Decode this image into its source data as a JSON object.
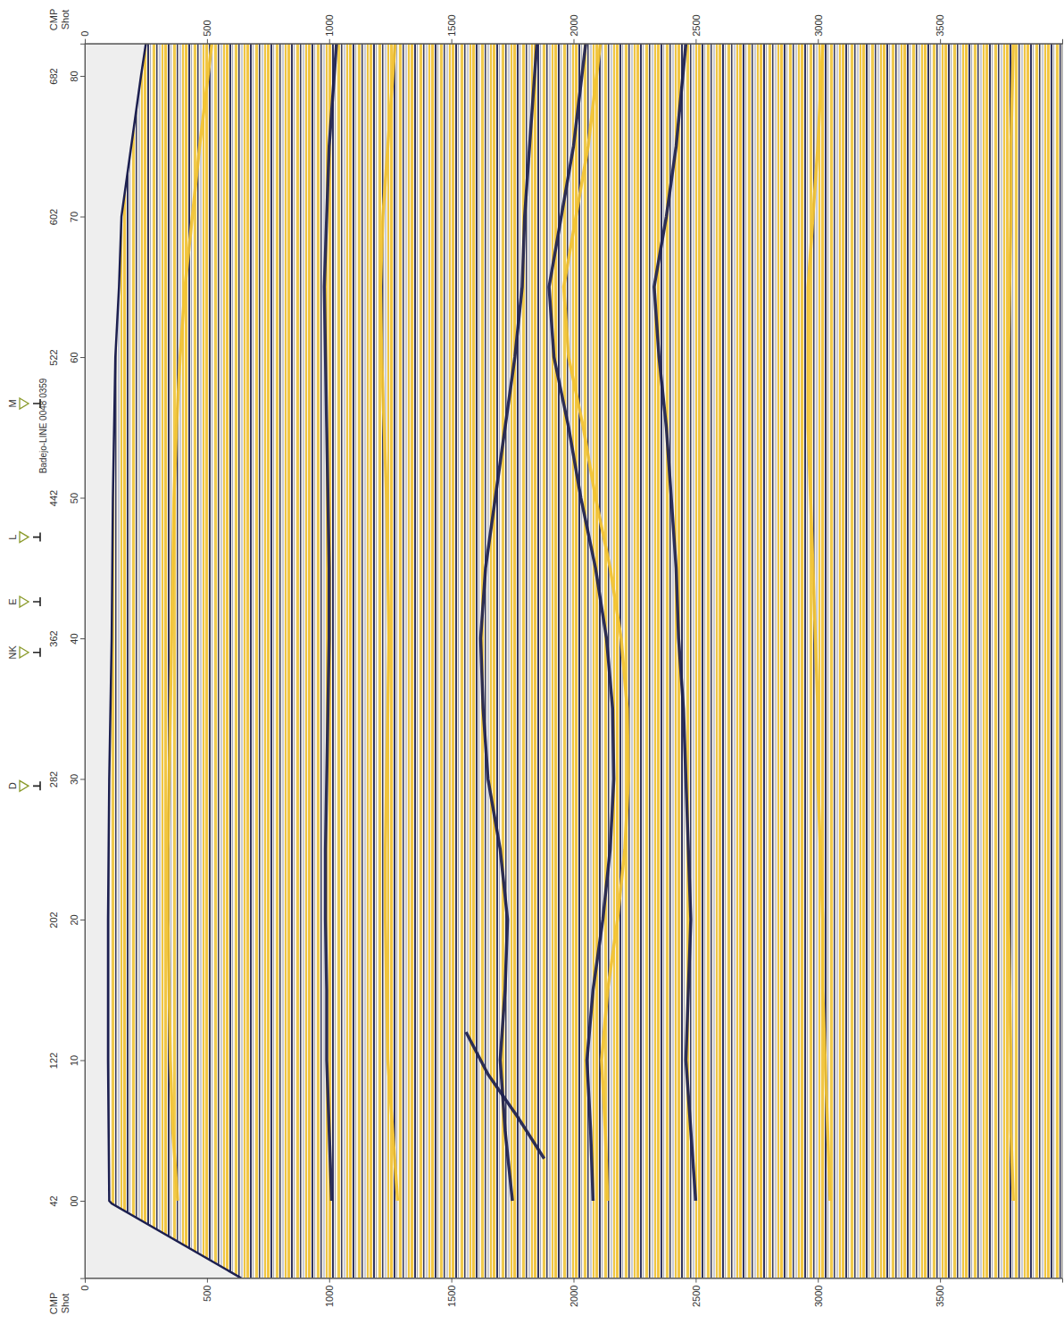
{
  "chart_data": {
    "type": "seismic_section",
    "cmp_label": "CMP",
    "shot_label": "Shot",
    "xlim": [
      0,
      4000
    ],
    "xticks": [
      0,
      500,
      1000,
      1500,
      2000,
      2500,
      3000,
      3500
    ],
    "ylim": [
      -5.5,
      82.3
    ],
    "yticks": [
      {
        "value": 0,
        "label": "00"
      },
      10,
      20,
      30,
      40,
      50,
      60,
      70,
      80
    ],
    "shot_labels": [
      42,
      122,
      202,
      282,
      362,
      442,
      522,
      602,
      682
    ],
    "seafloor": {
      "cmp": [
        -5.5,
        -0.2,
        0,
        10,
        20,
        30,
        40,
        50,
        60,
        65,
        70,
        80,
        82.3
      ],
      "time": [
        640,
        110,
        100,
        95,
        95,
        100,
        110,
        115,
        125,
        140,
        150,
        230,
        250
      ]
    },
    "horizons": [
      {
        "color": "#f2c230",
        "cmp": [
          0,
          5,
          10,
          15,
          20,
          25,
          30,
          35,
          40,
          45,
          50,
          55,
          60,
          65,
          70,
          75,
          82.3
        ],
        "time": [
          380,
          360,
          350,
          345,
          340,
          340,
          345,
          350,
          355,
          360,
          365,
          375,
          390,
          410,
          440,
          470,
          520
        ]
      },
      {
        "color": "#1c1f4f",
        "cmp": [
          0,
          5,
          10,
          15,
          20,
          25,
          30,
          35,
          40,
          45,
          50,
          55,
          60,
          65,
          70,
          75,
          82.3
        ],
        "time": [
          1010,
          1000,
          990,
          990,
          985,
          985,
          990,
          995,
          1000,
          1000,
          995,
          990,
          985,
          980,
          990,
          1000,
          1030
        ]
      },
      {
        "color": "#f2c230",
        "cmp": [
          0,
          5,
          10,
          15,
          20,
          25,
          30,
          35,
          40,
          45,
          50,
          55,
          60,
          65,
          70,
          75,
          82.3
        ],
        "time": [
          1280,
          1260,
          1240,
          1235,
          1230,
          1230,
          1235,
          1240,
          1245,
          1240,
          1235,
          1225,
          1215,
          1210,
          1220,
          1240,
          1270
        ]
      },
      {
        "color": "#1c1f4f",
        "cmp": [
          0,
          5,
          10,
          15,
          20,
          25,
          30,
          35,
          40,
          45,
          50,
          55,
          60,
          65,
          70,
          75,
          82.3
        ],
        "time": [
          1750,
          1720,
          1700,
          1720,
          1730,
          1700,
          1650,
          1630,
          1620,
          1640,
          1680,
          1720,
          1760,
          1790,
          1800,
          1820,
          1850
        ]
      },
      {
        "color": "#1c1f4f",
        "cmp": [
          0,
          5,
          10,
          15,
          20,
          25,
          30,
          35,
          40,
          45,
          50,
          55,
          60,
          65,
          70,
          75,
          82.3
        ],
        "time": [
          2080,
          2070,
          2055,
          2080,
          2120,
          2150,
          2165,
          2160,
          2135,
          2090,
          2030,
          1980,
          1920,
          1900,
          1950,
          2000,
          2050
        ]
      },
      {
        "color": "#f2c230",
        "cmp": [
          0,
          5,
          10,
          15,
          20,
          25,
          30,
          35,
          40,
          45,
          50,
          55,
          60,
          65,
          70,
          75,
          82.3
        ],
        "time": [
          2140,
          2130,
          2115,
          2140,
          2180,
          2210,
          2225,
          2220,
          2195,
          2150,
          2090,
          2040,
          1980,
          1960,
          2010,
          2060,
          2110
        ]
      },
      {
        "color": "#1c1f4f",
        "cmp": [
          0,
          5,
          10,
          15,
          20,
          25,
          30,
          35,
          40,
          45,
          50,
          55,
          60,
          65,
          70,
          75,
          82.3
        ],
        "time": [
          2500,
          2480,
          2460,
          2470,
          2480,
          2470,
          2460,
          2450,
          2430,
          2420,
          2400,
          2380,
          2350,
          2330,
          2380,
          2420,
          2460
        ]
      },
      {
        "color": "#f2c230",
        "cmp": [
          0,
          5,
          10,
          15,
          20,
          25,
          30,
          35,
          40,
          45,
          50,
          55,
          60,
          65,
          70,
          75,
          82.3
        ],
        "time": [
          3050,
          3040,
          3030,
          3020,
          3020,
          3010,
          3000,
          3000,
          2990,
          2980,
          2970,
          2960,
          2960,
          2960,
          2980,
          3000,
          3020
        ]
      },
      {
        "color": "#f2c230",
        "cmp": [
          0,
          5,
          10,
          15,
          20,
          25,
          30,
          35,
          40,
          45,
          50,
          55,
          60,
          65,
          70,
          75,
          82.3
        ],
        "time": [
          3800,
          3790,
          3790,
          3785,
          3780,
          3780,
          3780,
          3780,
          3780,
          3780,
          3780,
          3780,
          3780,
          3785,
          3790,
          3790,
          3800
        ]
      },
      {
        "color": "#1c1f4f",
        "cmp": [
          3,
          6,
          9,
          12
        ],
        "time": [
          1880,
          1770,
          1650,
          1560
        ]
      }
    ],
    "wells": [
      {
        "name": "D",
        "cmp": 29.5
      },
      {
        "name": "NK",
        "cmp": 39
      },
      {
        "name": "E",
        "cmp": 42.6
      },
      {
        "name": "L",
        "cmp": 47.2
      },
      {
        "name": "M",
        "cmp": 56.7,
        "label": "Badejo-LINE 0048 0359"
      }
    ]
  }
}
